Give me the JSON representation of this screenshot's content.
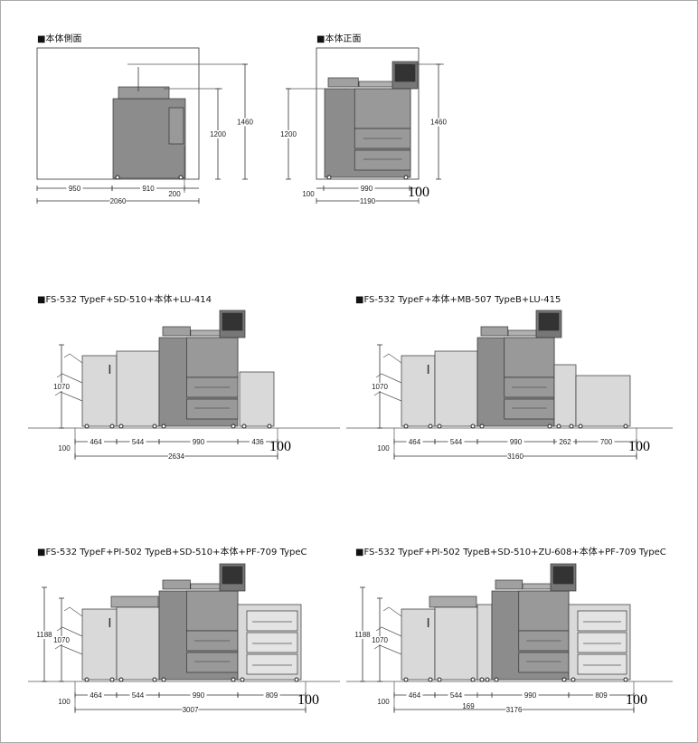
{
  "side_view": {
    "title": "■本体側面",
    "d950": "950",
    "d910": "910",
    "d200": "200",
    "d2060": "2060",
    "h1200": "1200",
    "h1460": "1460"
  },
  "front_view": {
    "title": "■本体正面",
    "left": "100",
    "d990": "990",
    "right": "100",
    "d1190": "1190",
    "h1200": "1200",
    "h1460": "1460"
  },
  "configs": [
    {
      "title": "■FS-532 TypeF+SD-510+本体+LU-414",
      "height": "1070",
      "segments": [
        "464",
        "544",
        "990",
        "436"
      ],
      "margin_left": "100",
      "margin_right": "100",
      "total": "2634"
    },
    {
      "title": "■FS-532 TypeF+本体+MB-507 TypeB+LU-415",
      "height": "1070",
      "segments": [
        "464",
        "544",
        "990",
        "262",
        "700"
      ],
      "margin_left": "100",
      "margin_right": "100",
      "total": "3160"
    },
    {
      "title": "■FS-532 TypeF+PI-502 TypeB+SD-510+本体+PF-709 TypeC",
      "height": "1070",
      "height_max": "1188",
      "segments": [
        "464",
        "544",
        "990",
        "809"
      ],
      "margin_left": "100",
      "margin_right": "100",
      "total": "3007"
    },
    {
      "title": "■FS-532 TypeF+PI-502 TypeB+SD-510+ZU-608+本体+PF-709 TypeC",
      "height": "1070",
      "height_max": "1188",
      "segments": [
        "464",
        "544",
        "990",
        "809"
      ],
      "zu_width": "169",
      "margin_left": "100",
      "margin_right": "100",
      "total": "3176"
    }
  ],
  "colors": {
    "light_module": "#d9d9d9",
    "main_body": "#8c8c8c",
    "outline": "#333333"
  }
}
